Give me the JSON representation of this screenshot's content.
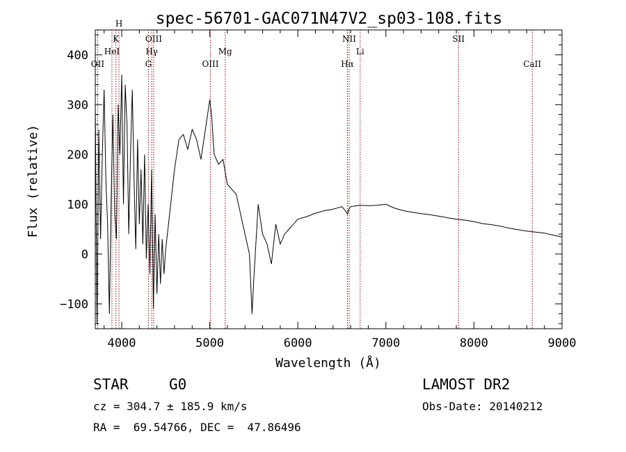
{
  "chart_data": {
    "type": "line",
    "title": "spec-56701-GAC071N47V2_sp03-108.fits",
    "xlabel": "Wavelength (Å)",
    "ylabel": "Flux (relative)",
    "xlim": [
      3700,
      9000
    ],
    "ylim": [
      -150,
      450
    ],
    "xticks": [
      4000,
      5000,
      6000,
      7000,
      8000,
      9000
    ],
    "yticks": [
      -100,
      0,
      100,
      200,
      300,
      400
    ],
    "spectral_lines": [
      {
        "label": "OII",
        "wavelength": 3727,
        "row": 3
      },
      {
        "label": "HeI",
        "wavelength": 3889,
        "row": 2
      },
      {
        "label": "K",
        "wavelength": 3934,
        "row": 1
      },
      {
        "label": "H",
        "wavelength": 3969,
        "row": 0
      },
      {
        "label": "G",
        "wavelength": 4304,
        "row": 3
      },
      {
        "label": "Hγ",
        "wavelength": 4341,
        "row": 2
      },
      {
        "label": "OIII",
        "wavelength": 4363,
        "row": 1
      },
      {
        "label": "OIII",
        "wavelength": 5007,
        "row": 3
      },
      {
        "label": "Mg",
        "wavelength": 5175,
        "row": 2
      },
      {
        "label": "Hα",
        "wavelength": 6563,
        "row": 3
      },
      {
        "label": "NII",
        "wavelength": 6583,
        "row": 1
      },
      {
        "label": "Li",
        "wavelength": 6708,
        "row": 2
      },
      {
        "label": "SII",
        "wavelength": 7825,
        "row": 1
      },
      {
        "label": "CaII",
        "wavelength": 8662,
        "row": 3
      }
    ],
    "series": [
      {
        "x": [
          3700,
          3720,
          3740,
          3760,
          3780,
          3800,
          3820,
          3840,
          3860,
          3880,
          3900,
          3920,
          3940,
          3960,
          3980,
          4000,
          4020,
          4040,
          4060,
          4080,
          4100,
          4120,
          4140,
          4160,
          4180,
          4200,
          4220,
          4240,
          4260,
          4280,
          4300,
          4320,
          4340,
          4360,
          4380,
          4400,
          4420,
          4440,
          4460,
          4480,
          4500,
          4550,
          4600,
          4650,
          4700,
          4750,
          4800,
          4850,
          4900,
          4950,
          5000,
          5020,
          5050,
          5100,
          5150,
          5200,
          5250,
          5300,
          5350,
          5400,
          5450,
          5480,
          5500,
          5550,
          5600,
          5650,
          5700,
          5750,
          5800,
          5850,
          5900,
          5950,
          6000,
          6100,
          6200,
          6300,
          6400,
          6500,
          6550,
          6563,
          6580,
          6600,
          6700,
          6800,
          6900,
          7000,
          7100,
          7200,
          7300,
          7400,
          7500,
          7600,
          7700,
          7800,
          7900,
          8000,
          8100,
          8200,
          8300,
          8400,
          8500,
          8600,
          8700,
          8800,
          8900,
          8950,
          9000
        ],
        "y": [
          300,
          -140,
          250,
          30,
          200,
          330,
          150,
          60,
          -120,
          110,
          280,
          80,
          30,
          300,
          200,
          360,
          100,
          340,
          260,
          40,
          200,
          330,
          150,
          10,
          230,
          60,
          170,
          20,
          200,
          -10,
          100,
          -40,
          170,
          -110,
          80,
          -80,
          40,
          -60,
          30,
          -40,
          10,
          90,
          170,
          230,
          240,
          210,
          250,
          230,
          190,
          250,
          310,
          280,
          200,
          180,
          190,
          140,
          130,
          120,
          80,
          40,
          0,
          -120,
          -50,
          100,
          40,
          20,
          -20,
          60,
          20,
          40,
          50,
          60,
          70,
          75,
          82,
          87,
          90,
          95,
          85,
          80,
          90,
          95,
          98,
          97,
          98,
          100,
          92,
          87,
          84,
          81,
          79,
          76,
          73,
          70,
          68,
          65,
          61,
          59,
          56,
          52,
          49,
          46,
          44,
          42,
          38,
          36,
          34
        ]
      }
    ]
  },
  "info": {
    "object_class": "STAR",
    "subclass": "G0",
    "survey": "LAMOST DR2",
    "cz": "cz = 304.7 ± 185.9 km/s",
    "obs_date": "Obs-Date: 20140212",
    "coords": "RA =  69.54766, DEC =  47.86496"
  }
}
